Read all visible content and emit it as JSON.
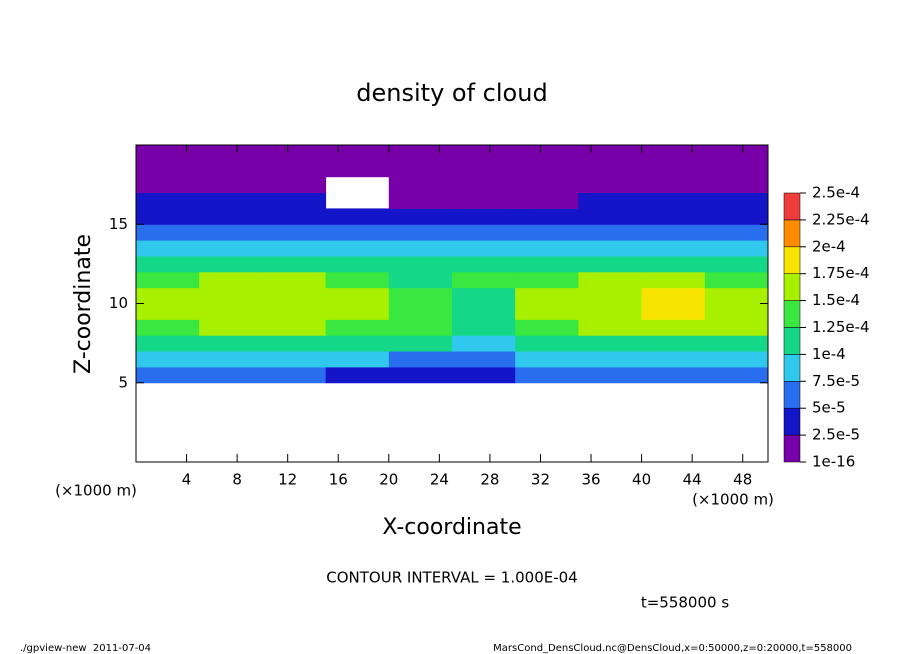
{
  "chart_data": {
    "type": "heatmap",
    "title": "density of cloud",
    "xlabel": "X-coordinate",
    "ylabel": "Z-coordinate",
    "x_unit": "(×1000 m)",
    "y_unit": "(×1000 m)",
    "contour_note": "CONTOUR INTERVAL = 1.000E-04",
    "time_note": "t=558000 s",
    "footer_left": "./gpview-new  2011-07-04",
    "footer_right": "MarsCond_DensCloud.nc@DensCloud,x=0:50000,z=0:20000,t=558000",
    "xlim": [
      0,
      50
    ],
    "ylim": [
      0,
      20
    ],
    "xticks": [
      4,
      8,
      12,
      16,
      20,
      24,
      28,
      32,
      36,
      40,
      44,
      48
    ],
    "yticks": [
      5,
      10,
      15
    ],
    "x": [
      2.5,
      7.5,
      12.5,
      17.5,
      22.5,
      27.5,
      32.5,
      37.5,
      42.5,
      47.5
    ],
    "y": [
      0.5,
      1.5,
      2.5,
      3.5,
      4.5,
      5.5,
      6.5,
      7.5,
      8.5,
      9.5,
      10.5,
      11.5,
      12.5,
      13.5,
      14.5,
      15.5,
      16.5,
      17.5,
      18.5,
      19.5
    ],
    "values": [
      [
        null,
        null,
        null,
        null,
        null,
        null,
        null,
        null,
        null,
        null
      ],
      [
        null,
        null,
        null,
        null,
        null,
        null,
        null,
        null,
        null,
        null
      ],
      [
        null,
        null,
        null,
        null,
        null,
        null,
        null,
        null,
        null,
        null
      ],
      [
        null,
        null,
        null,
        null,
        null,
        null,
        null,
        null,
        null,
        null
      ],
      [
        null,
        null,
        null,
        null,
        null,
        null,
        null,
        null,
        null,
        null
      ],
      [
        5e-05,
        5e-05,
        5e-05,
        4e-05,
        3e-05,
        4e-05,
        5e-05,
        5e-05,
        5e-05,
        5e-05
      ],
      [
        8e-05,
        8e-05,
        8e-05,
        8e-05,
        7e-05,
        7e-05,
        8e-05,
        8e-05,
        8e-05,
        8e-05
      ],
      [
        0.00011,
        0.00011,
        0.00011,
        0.00011,
        0.0001,
        9e-05,
        0.00011,
        0.00011,
        0.00011,
        0.00011
      ],
      [
        0.00014,
        0.00015,
        0.00015,
        0.00014,
        0.00013,
        0.00012,
        0.00014,
        0.00015,
        0.00016,
        0.00015
      ],
      [
        0.00016,
        0.00017,
        0.00017,
        0.00016,
        0.00014,
        0.00012,
        0.00015,
        0.00017,
        0.00018,
        0.00017
      ],
      [
        0.00016,
        0.00017,
        0.00017,
        0.00016,
        0.00013,
        0.00012,
        0.00015,
        0.00017,
        0.00018,
        0.00017
      ],
      [
        0.00014,
        0.00015,
        0.00015,
        0.00014,
        0.00012,
        0.00013,
        0.00014,
        0.00015,
        0.00015,
        0.00014
      ],
      [
        0.00011,
        0.00011,
        0.00011,
        0.00011,
        0.0001,
        0.00011,
        0.00011,
        0.00011,
        0.00011,
        0.00011
      ],
      [
        8e-05,
        8e-05,
        8e-05,
        8e-05,
        8e-05,
        8e-05,
        8e-05,
        8e-05,
        8e-05,
        8e-05
      ],
      [
        6e-05,
        5e-05,
        5e-05,
        5e-05,
        5e-05,
        5e-05,
        6e-05,
        6e-05,
        5e-05,
        6e-05
      ],
      [
        4e-05,
        4e-05,
        4e-05,
        4e-05,
        3e-05,
        3e-05,
        4e-05,
        4e-05,
        4e-05,
        4e-05
      ],
      [
        3e-05,
        3e-05,
        3e-05,
        null,
        2e-05,
        2e-05,
        2e-05,
        3e-05,
        3e-05,
        3e-05
      ],
      [
        2e-05,
        2e-05,
        2e-05,
        null,
        2e-05,
        2e-05,
        2e-05,
        2e-05,
        2e-05,
        2e-05
      ],
      [
        1e-05,
        1e-05,
        1e-05,
        1e-05,
        1e-05,
        1e-05,
        1e-05,
        1e-05,
        1e-05,
        1e-05
      ],
      [
        5e-06,
        5e-06,
        5e-06,
        5e-06,
        5e-06,
        5e-06,
        5e-06,
        5e-06,
        5e-06,
        5e-06
      ]
    ],
    "colorbar_ticks": [
      {
        "value": 1e-16,
        "label": "1e-16"
      },
      {
        "value": 2.5e-05,
        "label": "2.5e-5"
      },
      {
        "value": 5e-05,
        "label": "5e-5"
      },
      {
        "value": 7.5e-05,
        "label": "7.5e-5"
      },
      {
        "value": 0.0001,
        "label": "1e-4"
      },
      {
        "value": 0.000125,
        "label": "1.25e-4"
      },
      {
        "value": 0.00015,
        "label": "1.5e-4"
      },
      {
        "value": 0.000175,
        "label": "1.75e-4"
      },
      {
        "value": 0.0002,
        "label": "2e-4"
      },
      {
        "value": 0.000225,
        "label": "2.25e-4"
      },
      {
        "value": 0.00025,
        "label": "2.5e-4"
      }
    ],
    "colors": [
      "#7800a8",
      "#1414c8",
      "#2a6ef0",
      "#30c8ec",
      "#14d888",
      "#3ae640",
      "#a8f000",
      "#f6e400",
      "#ff8c00",
      "#f03c3c"
    ]
  }
}
